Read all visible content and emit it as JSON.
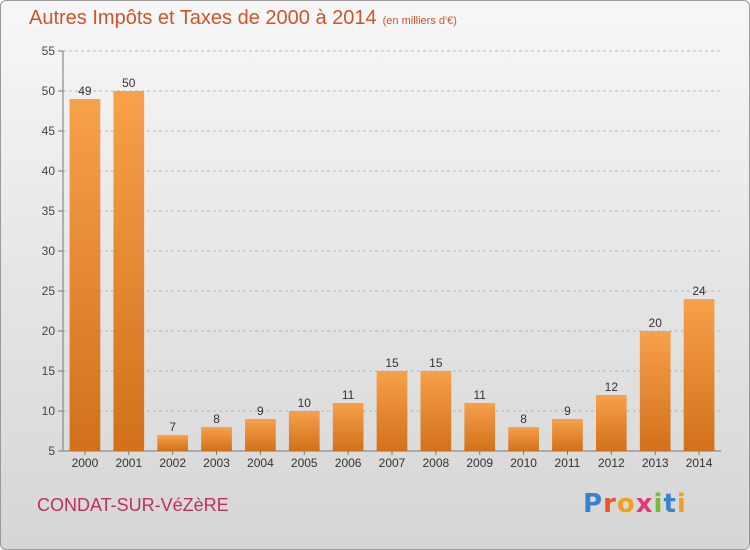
{
  "header": {
    "title": "Autres Impôts et Taxes de 2000 à 2014",
    "unit": "(en milliers d'€)"
  },
  "footer": {
    "commune": "CONDAT-SUR-VéZèRE",
    "logo": "Proxiti"
  },
  "colors": {
    "bar_top": "#f7a14a",
    "bar_bottom": "#d2701b",
    "title": "#d0542a",
    "commune": "#c0305a"
  },
  "chart_data": {
    "type": "bar",
    "categories": [
      "2000",
      "2001",
      "2002",
      "2003",
      "2004",
      "2005",
      "2006",
      "2007",
      "2008",
      "2009",
      "2010",
      "2011",
      "2012",
      "2013",
      "2014"
    ],
    "values": [
      49,
      50,
      7,
      8,
      9,
      10,
      11,
      15,
      15,
      11,
      8,
      9,
      12,
      20,
      24
    ],
    "data_labels": [
      "49",
      "50",
      "7",
      "8",
      "9",
      "10",
      "11",
      "15",
      "15",
      "11",
      "8",
      "9",
      "12",
      "20",
      "24"
    ],
    "yticks": [
      "5",
      "10",
      "15",
      "20",
      "25",
      "30",
      "35",
      "40",
      "45",
      "50",
      "55"
    ],
    "ylim": [
      5,
      55
    ],
    "grid": "horizontal dashed",
    "legend": "none"
  }
}
